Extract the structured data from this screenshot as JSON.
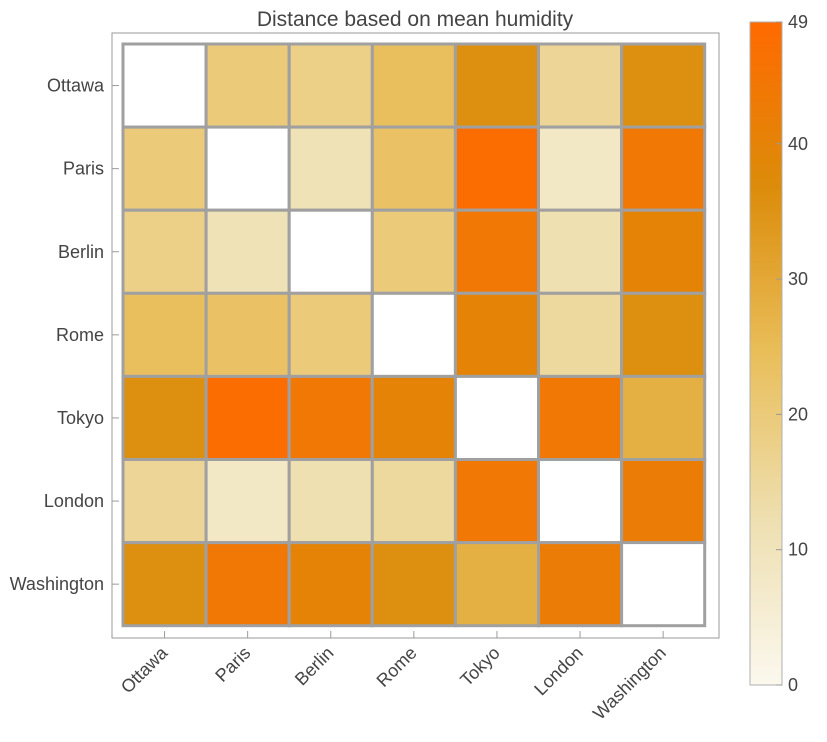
{
  "chart_data": {
    "type": "heatmap",
    "title": "Distance based on mean humidity",
    "rows": [
      "Ottawa",
      "Paris",
      "Berlin",
      "Rome",
      "Tokyo",
      "London",
      "Washington"
    ],
    "columns": [
      "Ottawa",
      "Paris",
      "Berlin",
      "Rome",
      "Tokyo",
      "London",
      "Washington"
    ],
    "values": [
      [
        0,
        20,
        18,
        24,
        36,
        16,
        36
      ],
      [
        20,
        0,
        11,
        23,
        48,
        8,
        44
      ],
      [
        18,
        11,
        0,
        20,
        44,
        12,
        40
      ],
      [
        24,
        23,
        20,
        0,
        40,
        15,
        36
      ],
      [
        36,
        48,
        44,
        40,
        0,
        44,
        28
      ],
      [
        16,
        8,
        12,
        15,
        44,
        0,
        42
      ],
      [
        36,
        44,
        40,
        36,
        28,
        42,
        0
      ]
    ],
    "colorbar": {
      "min": 0,
      "max": 49,
      "ticks": [
        0,
        10,
        20,
        30,
        40,
        49
      ],
      "colors": [
        "#fbf8ee",
        "#eedfb0",
        "#e9be5a",
        "#dc8c0a",
        "#ff6a00"
      ]
    },
    "grid": true,
    "legend_position": "right"
  }
}
